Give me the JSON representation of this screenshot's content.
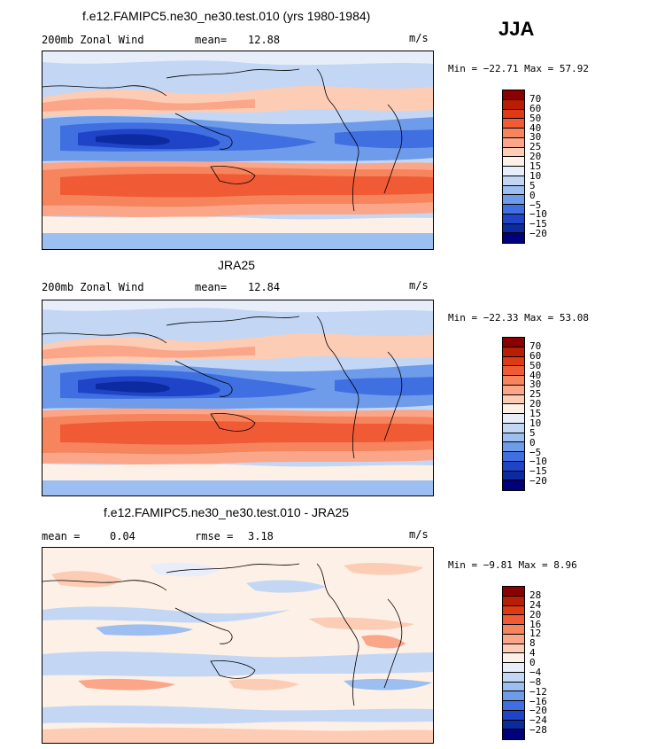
{
  "season": "JJA",
  "colors": {
    "wind": [
      "#8b0000",
      "#b81e04",
      "#de3a14",
      "#f05a35",
      "#f6845d",
      "#fba689",
      "#fdccb5",
      "#fdf0e6",
      "#e8eef9",
      "#c3d7f5",
      "#9dbef0",
      "#6e9bea",
      "#3f6fe0",
      "#1f44c8",
      "#0d2ba0",
      "#00007a"
    ],
    "diff": [
      "#8b0000",
      "#b81e04",
      "#de3a14",
      "#f05a35",
      "#f6845d",
      "#fba689",
      "#fdccb5",
      "#fdf0e6",
      "#e8eef9",
      "#c3d7f5",
      "#9dbef0",
      "#6e9bea",
      "#3f6fe0",
      "#1f44c8",
      "#0d2ba0",
      "#00007a"
    ]
  },
  "panels": [
    {
      "title": "f.e12.FAMIPC5.ne30_ne30.test.010 (yrs 1980-1984)",
      "left_label": "200mb Zonal Wind",
      "stat_label": "mean=",
      "stat_value": "12.88",
      "units": "m/s",
      "min_max": "Min = −22.71 Max =  57.92",
      "ticks": [
        "70",
        "60",
        "50",
        "40",
        "30",
        "25",
        "20",
        "15",
        "10",
        "5",
        "0",
        "−5",
        "−10",
        "−15",
        "−20"
      ]
    },
    {
      "title": "JRA25",
      "left_label": "200mb Zonal Wind",
      "stat_label": "mean=",
      "stat_value": "12.84",
      "units": "m/s",
      "min_max": "Min = −22.33 Max =  53.08",
      "ticks": [
        "70",
        "60",
        "50",
        "40",
        "30",
        "25",
        "20",
        "15",
        "10",
        "5",
        "0",
        "−5",
        "−10",
        "−15",
        "−20"
      ]
    },
    {
      "title": "f.e12.FAMIPC5.ne30_ne30.test.010 - JRA25",
      "left_label": "mean =",
      "left_value": "0.04",
      "stat_label": "rmse =",
      "stat_value": "3.18",
      "units": "m/s",
      "min_max": "Min =  −9.81 Max =   8.96",
      "ticks": [
        "28",
        "24",
        "20",
        "16",
        "12",
        "8",
        "4",
        "0",
        "−4",
        "−8",
        "−12",
        "−16",
        "−20",
        "−24",
        "−28"
      ]
    }
  ]
}
